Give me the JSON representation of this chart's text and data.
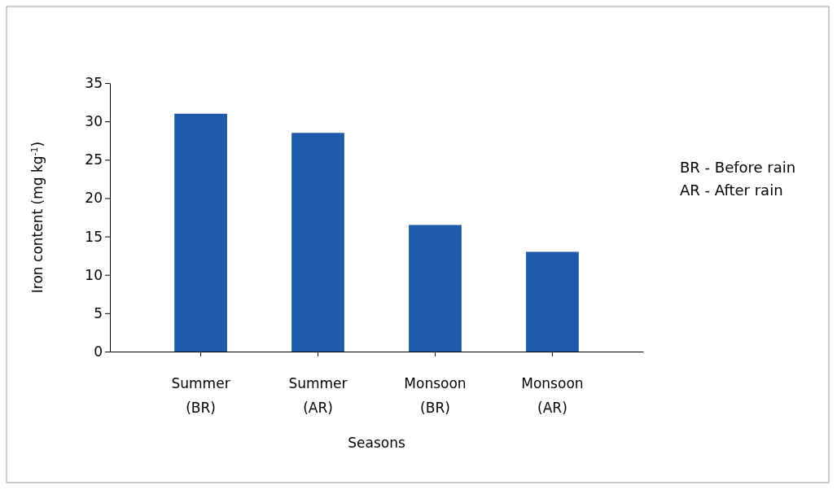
{
  "chart_data": {
    "type": "bar",
    "xlabel": "Seasons",
    "ylabel": "Iron content (mg kg$^{-1}$)",
    "categories": [
      "Summer (BR)",
      "Summer (AR)",
      "Monsoon (BR)",
      "Monsoon (AR)"
    ],
    "values": [
      31,
      28.5,
      16.5,
      13
    ],
    "color": "#1f5ba8",
    "ylim": [
      0,
      35
    ],
    "yticks": [
      0,
      5,
      10,
      15,
      20,
      25,
      30,
      35
    ],
    "grid": false,
    "annotations": [
      "BR - Before rain",
      "AR - After rain"
    ]
  }
}
